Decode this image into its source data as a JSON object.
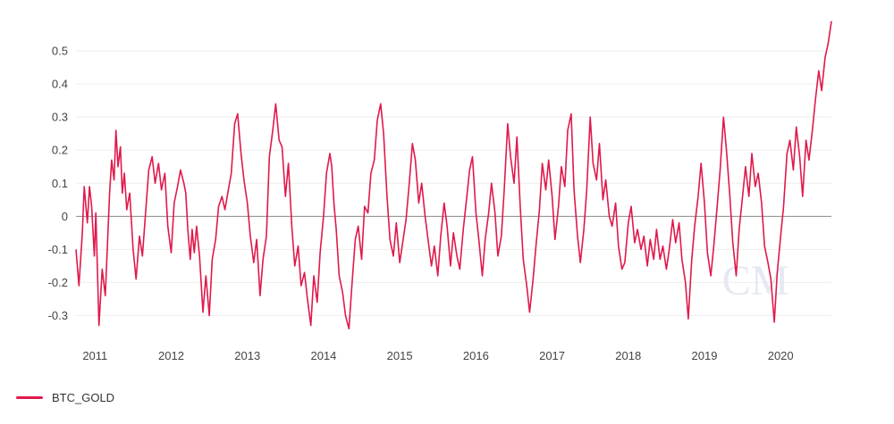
{
  "chart_data": {
    "type": "line",
    "title": "",
    "xlabel": "",
    "ylabel": "",
    "x_ticks": [
      "2011",
      "2012",
      "2013",
      "2014",
      "2015",
      "2016",
      "2017",
      "2018",
      "2019",
      "2020"
    ],
    "y_ticks": [
      "-0.3",
      "-0.2",
      "-0.1",
      "0",
      "0.1",
      "0.2",
      "0.3",
      "0.4",
      "0.5"
    ],
    "xlim": [
      "2010-10",
      "2020-09"
    ],
    "ylim": [
      -0.35,
      0.6
    ],
    "grid": true,
    "zero_line": true,
    "legend": "bottom-left",
    "series": [
      {
        "name": "BTC_GOLD",
        "color": "#e0194b",
        "points": [
          [
            "2010-10-01",
            -0.1
          ],
          [
            "2010-10-15",
            -0.21
          ],
          [
            "2010-11-01",
            -0.05
          ],
          [
            "2010-11-10",
            0.09
          ],
          [
            "2010-11-25",
            -0.02
          ],
          [
            "2010-12-05",
            0.09
          ],
          [
            "2010-12-15",
            0.03
          ],
          [
            "2010-12-28",
            -0.12
          ],
          [
            "2011-01-05",
            0.01
          ],
          [
            "2011-01-20",
            -0.33
          ],
          [
            "2011-02-05",
            -0.16
          ],
          [
            "2011-02-20",
            -0.24
          ],
          [
            "2011-03-10",
            0.07
          ],
          [
            "2011-03-20",
            0.17
          ],
          [
            "2011-04-01",
            0.11
          ],
          [
            "2011-04-10",
            0.26
          ],
          [
            "2011-04-20",
            0.15
          ],
          [
            "2011-05-01",
            0.21
          ],
          [
            "2011-05-10",
            0.07
          ],
          [
            "2011-05-20",
            0.13
          ],
          [
            "2011-06-01",
            0.02
          ],
          [
            "2011-06-15",
            0.07
          ],
          [
            "2011-07-01",
            -0.1
          ],
          [
            "2011-07-15",
            -0.19
          ],
          [
            "2011-08-01",
            -0.06
          ],
          [
            "2011-08-15",
            -0.12
          ],
          [
            "2011-09-01",
            0.02
          ],
          [
            "2011-09-15",
            0.14
          ],
          [
            "2011-10-01",
            0.18
          ],
          [
            "2011-10-15",
            0.1
          ],
          [
            "2011-11-01",
            0.16
          ],
          [
            "2011-11-15",
            0.08
          ],
          [
            "2011-12-01",
            0.13
          ],
          [
            "2011-12-15",
            -0.03
          ],
          [
            "2012-01-01",
            -0.11
          ],
          [
            "2012-01-15",
            0.04
          ],
          [
            "2012-02-01",
            0.09
          ],
          [
            "2012-02-15",
            0.14
          ],
          [
            "2012-03-01",
            0.1
          ],
          [
            "2012-03-10",
            0.07
          ],
          [
            "2012-03-20",
            -0.04
          ],
          [
            "2012-04-01",
            -0.13
          ],
          [
            "2012-04-10",
            -0.04
          ],
          [
            "2012-04-20",
            -0.11
          ],
          [
            "2012-05-01",
            -0.03
          ],
          [
            "2012-05-15",
            -0.12
          ],
          [
            "2012-06-01",
            -0.29
          ],
          [
            "2012-06-15",
            -0.18
          ],
          [
            "2012-07-01",
            -0.3
          ],
          [
            "2012-07-15",
            -0.13
          ],
          [
            "2012-08-01",
            -0.07
          ],
          [
            "2012-08-15",
            0.03
          ],
          [
            "2012-09-01",
            0.06
          ],
          [
            "2012-09-15",
            0.02
          ],
          [
            "2012-10-01",
            0.08
          ],
          [
            "2012-10-15",
            0.13
          ],
          [
            "2012-11-01",
            0.28
          ],
          [
            "2012-11-15",
            0.31
          ],
          [
            "2012-12-01",
            0.19
          ],
          [
            "2012-12-15",
            0.11
          ],
          [
            "2013-01-01",
            0.04
          ],
          [
            "2013-01-15",
            -0.06
          ],
          [
            "2013-02-01",
            -0.14
          ],
          [
            "2013-02-15",
            -0.07
          ],
          [
            "2013-03-01",
            -0.24
          ],
          [
            "2013-03-15",
            -0.13
          ],
          [
            "2013-04-01",
            -0.06
          ],
          [
            "2013-04-15",
            0.18
          ],
          [
            "2013-05-01",
            0.26
          ],
          [
            "2013-05-15",
            0.34
          ],
          [
            "2013-06-01",
            0.23
          ],
          [
            "2013-06-15",
            0.21
          ],
          [
            "2013-07-01",
            0.06
          ],
          [
            "2013-07-15",
            0.16
          ],
          [
            "2013-08-01",
            -0.03
          ],
          [
            "2013-08-15",
            -0.15
          ],
          [
            "2013-09-01",
            -0.09
          ],
          [
            "2013-09-15",
            -0.21
          ],
          [
            "2013-10-01",
            -0.17
          ],
          [
            "2013-10-15",
            -0.25
          ],
          [
            "2013-11-01",
            -0.33
          ],
          [
            "2013-11-15",
            -0.18
          ],
          [
            "2013-12-01",
            -0.26
          ],
          [
            "2013-12-15",
            -0.11
          ],
          [
            "2014-01-01",
            0.0
          ],
          [
            "2014-01-15",
            0.13
          ],
          [
            "2014-02-01",
            0.19
          ],
          [
            "2014-02-10",
            0.15
          ],
          [
            "2014-02-20",
            0.04
          ],
          [
            "2014-03-01",
            -0.04
          ],
          [
            "2014-03-15",
            -0.18
          ],
          [
            "2014-04-01",
            -0.23
          ],
          [
            "2014-04-15",
            -0.3
          ],
          [
            "2014-05-01",
            -0.34
          ],
          [
            "2014-05-15",
            -0.21
          ],
          [
            "2014-06-01",
            -0.07
          ],
          [
            "2014-06-15",
            -0.03
          ],
          [
            "2014-07-01",
            -0.13
          ],
          [
            "2014-07-15",
            0.03
          ],
          [
            "2014-08-01",
            0.01
          ],
          [
            "2014-08-15",
            0.13
          ],
          [
            "2014-09-01",
            0.17
          ],
          [
            "2014-09-15",
            0.29
          ],
          [
            "2014-10-01",
            0.34
          ],
          [
            "2014-10-15",
            0.25
          ],
          [
            "2014-11-01",
            0.06
          ],
          [
            "2014-11-15",
            -0.07
          ],
          [
            "2014-12-01",
            -0.12
          ],
          [
            "2014-12-15",
            -0.02
          ],
          [
            "2015-01-01",
            -0.14
          ],
          [
            "2015-01-15",
            -0.08
          ],
          [
            "2015-02-01",
            -0.01
          ],
          [
            "2015-02-15",
            0.09
          ],
          [
            "2015-03-01",
            0.22
          ],
          [
            "2015-03-15",
            0.17
          ],
          [
            "2015-04-01",
            0.04
          ],
          [
            "2015-04-15",
            0.1
          ],
          [
            "2015-05-01",
            0.0
          ],
          [
            "2015-05-15",
            -0.07
          ],
          [
            "2015-06-01",
            -0.15
          ],
          [
            "2015-06-15",
            -0.09
          ],
          [
            "2015-07-01",
            -0.18
          ],
          [
            "2015-07-15",
            -0.06
          ],
          [
            "2015-08-01",
            0.04
          ],
          [
            "2015-08-15",
            -0.03
          ],
          [
            "2015-09-01",
            -0.15
          ],
          [
            "2015-09-15",
            -0.05
          ],
          [
            "2015-10-01",
            -0.12
          ],
          [
            "2015-10-15",
            -0.16
          ],
          [
            "2015-11-01",
            -0.04
          ],
          [
            "2015-11-15",
            0.04
          ],
          [
            "2015-12-01",
            0.14
          ],
          [
            "2015-12-15",
            0.18
          ],
          [
            "2016-01-01",
            0.01
          ],
          [
            "2016-01-15",
            -0.07
          ],
          [
            "2016-02-01",
            -0.18
          ],
          [
            "2016-02-15",
            -0.07
          ],
          [
            "2016-03-01",
            0.01
          ],
          [
            "2016-03-15",
            0.1
          ],
          [
            "2016-04-01",
            0.01
          ],
          [
            "2016-04-15",
            -0.12
          ],
          [
            "2016-05-01",
            -0.06
          ],
          [
            "2016-05-15",
            0.08
          ],
          [
            "2016-06-01",
            0.28
          ],
          [
            "2016-06-15",
            0.18
          ],
          [
            "2016-07-01",
            0.1
          ],
          [
            "2016-07-15",
            0.24
          ],
          [
            "2016-08-01",
            0.02
          ],
          [
            "2016-08-15",
            -0.13
          ],
          [
            "2016-09-01",
            -0.21
          ],
          [
            "2016-09-15",
            -0.29
          ],
          [
            "2016-10-01",
            -0.19
          ],
          [
            "2016-10-15",
            -0.09
          ],
          [
            "2016-11-01",
            0.02
          ],
          [
            "2016-11-15",
            0.16
          ],
          [
            "2016-12-01",
            0.08
          ],
          [
            "2016-12-15",
            0.17
          ],
          [
            "2017-01-01",
            0.06
          ],
          [
            "2017-01-15",
            -0.07
          ],
          [
            "2017-02-01",
            0.03
          ],
          [
            "2017-02-15",
            0.15
          ],
          [
            "2017-03-01",
            0.09
          ],
          [
            "2017-03-15",
            0.26
          ],
          [
            "2017-04-01",
            0.31
          ],
          [
            "2017-04-15",
            0.08
          ],
          [
            "2017-05-01",
            -0.06
          ],
          [
            "2017-05-15",
            -0.14
          ],
          [
            "2017-06-01",
            -0.04
          ],
          [
            "2017-06-15",
            0.08
          ],
          [
            "2017-07-01",
            0.3
          ],
          [
            "2017-07-15",
            0.16
          ],
          [
            "2017-08-01",
            0.11
          ],
          [
            "2017-08-15",
            0.22
          ],
          [
            "2017-09-01",
            0.05
          ],
          [
            "2017-09-15",
            0.11
          ],
          [
            "2017-10-01",
            0.0
          ],
          [
            "2017-10-15",
            -0.03
          ],
          [
            "2017-11-01",
            0.04
          ],
          [
            "2017-11-15",
            -0.09
          ],
          [
            "2017-12-01",
            -0.16
          ],
          [
            "2017-12-15",
            -0.14
          ],
          [
            "2018-01-01",
            -0.02
          ],
          [
            "2018-01-15",
            0.03
          ],
          [
            "2018-02-01",
            -0.08
          ],
          [
            "2018-02-15",
            -0.04
          ],
          [
            "2018-03-01",
            -0.1
          ],
          [
            "2018-03-15",
            -0.06
          ],
          [
            "2018-04-01",
            -0.15
          ],
          [
            "2018-04-15",
            -0.07
          ],
          [
            "2018-05-01",
            -0.13
          ],
          [
            "2018-05-15",
            -0.04
          ],
          [
            "2018-06-01",
            -0.13
          ],
          [
            "2018-06-15",
            -0.09
          ],
          [
            "2018-07-01",
            -0.16
          ],
          [
            "2018-07-15",
            -0.1
          ],
          [
            "2018-08-01",
            -0.01
          ],
          [
            "2018-08-15",
            -0.08
          ],
          [
            "2018-09-01",
            -0.02
          ],
          [
            "2018-09-15",
            -0.13
          ],
          [
            "2018-10-01",
            -0.2
          ],
          [
            "2018-10-15",
            -0.31
          ],
          [
            "2018-11-01",
            -0.13
          ],
          [
            "2018-11-15",
            -0.03
          ],
          [
            "2018-12-01",
            0.06
          ],
          [
            "2018-12-15",
            0.16
          ],
          [
            "2019-01-01",
            0.04
          ],
          [
            "2019-01-15",
            -0.11
          ],
          [
            "2019-02-01",
            -0.18
          ],
          [
            "2019-02-15",
            -0.09
          ],
          [
            "2019-03-01",
            0.03
          ],
          [
            "2019-03-15",
            0.14
          ],
          [
            "2019-04-01",
            0.3
          ],
          [
            "2019-04-15",
            0.2
          ],
          [
            "2019-05-01",
            0.06
          ],
          [
            "2019-05-15",
            -0.08
          ],
          [
            "2019-06-01",
            -0.18
          ],
          [
            "2019-06-15",
            -0.04
          ],
          [
            "2019-07-01",
            0.06
          ],
          [
            "2019-07-15",
            0.15
          ],
          [
            "2019-08-01",
            0.06
          ],
          [
            "2019-08-15",
            0.19
          ],
          [
            "2019-09-01",
            0.09
          ],
          [
            "2019-09-15",
            0.13
          ],
          [
            "2019-10-01",
            0.04
          ],
          [
            "2019-10-15",
            -0.09
          ],
          [
            "2019-11-01",
            -0.14
          ],
          [
            "2019-11-15",
            -0.19
          ],
          [
            "2019-12-01",
            -0.32
          ],
          [
            "2019-12-15",
            -0.17
          ],
          [
            "2020-01-01",
            -0.06
          ],
          [
            "2020-01-15",
            0.03
          ],
          [
            "2020-02-01",
            0.19
          ],
          [
            "2020-02-15",
            0.23
          ],
          [
            "2020-03-01",
            0.14
          ],
          [
            "2020-03-15",
            0.27
          ],
          [
            "2020-04-01",
            0.18
          ],
          [
            "2020-04-15",
            0.06
          ],
          [
            "2020-05-01",
            0.23
          ],
          [
            "2020-05-15",
            0.17
          ],
          [
            "2020-06-01",
            0.26
          ],
          [
            "2020-06-15",
            0.35
          ],
          [
            "2020-07-01",
            0.44
          ],
          [
            "2020-07-15",
            0.38
          ],
          [
            "2020-08-01",
            0.48
          ],
          [
            "2020-08-15",
            0.52
          ],
          [
            "2020-09-01",
            0.59
          ]
        ]
      }
    ]
  },
  "legend": {
    "label": "BTC_GOLD"
  },
  "watermark": {
    "label": "CM"
  }
}
